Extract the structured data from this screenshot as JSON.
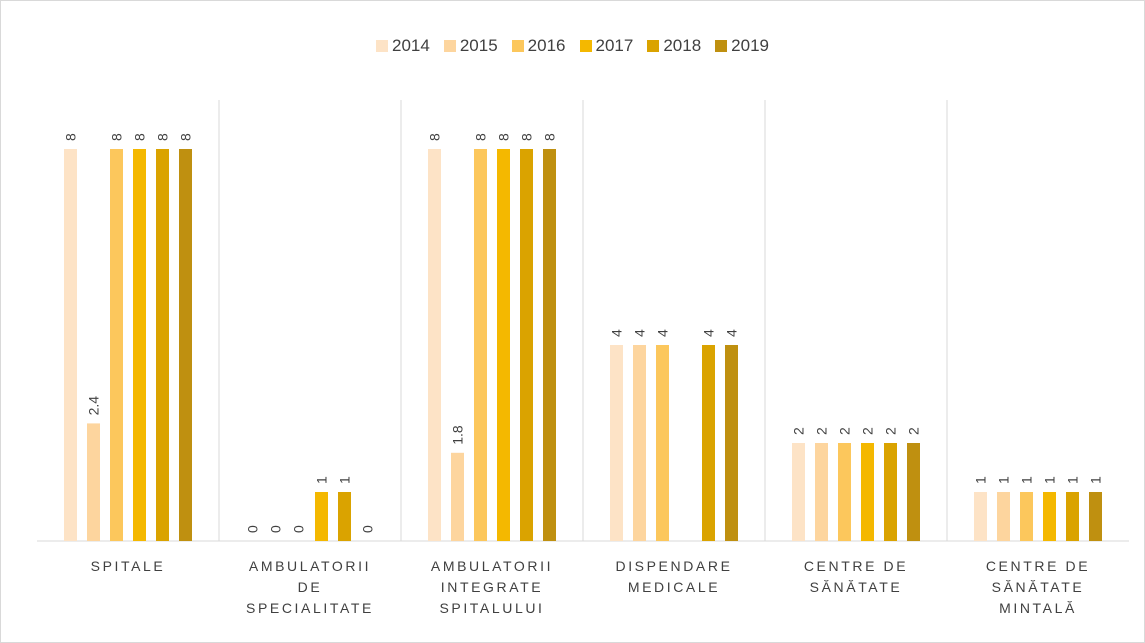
{
  "chart_data": {
    "type": "bar",
    "categories": [
      "SPITALE",
      "AMBULATORII\nDE\nSPECIALITATE",
      "AMBULATORII\nINTEGRATE\nSPITALULUI",
      "DISPENDARE\nMEDICALE",
      "CENTRE DE\nSĂNĂTATE",
      "CENTRE DE\nSĂNĂTATE\nMINTALĂ"
    ],
    "series": [
      {
        "name": "2014",
        "color": "#fde3c6",
        "values": [
          8,
          0,
          8,
          4,
          2,
          1
        ]
      },
      {
        "name": "2015",
        "color": "#fdd59e",
        "values": [
          2.4,
          0,
          1.8,
          4,
          2,
          1
        ]
      },
      {
        "name": "2016",
        "color": "#fcc75c",
        "values": [
          8,
          0,
          8,
          4,
          2,
          1
        ]
      },
      {
        "name": "2017",
        "color": "#f4b800",
        "values": [
          8,
          1,
          8,
          null,
          2,
          1
        ]
      },
      {
        "name": "2018",
        "color": "#daa300",
        "values": [
          8,
          1,
          8,
          4,
          2,
          1
        ]
      },
      {
        "name": "2019",
        "color": "#bf9010",
        "values": [
          8,
          0,
          8,
          4,
          2,
          1
        ]
      }
    ],
    "ylim": [
      0,
      9
    ],
    "legend": "top",
    "data_labels": true
  }
}
